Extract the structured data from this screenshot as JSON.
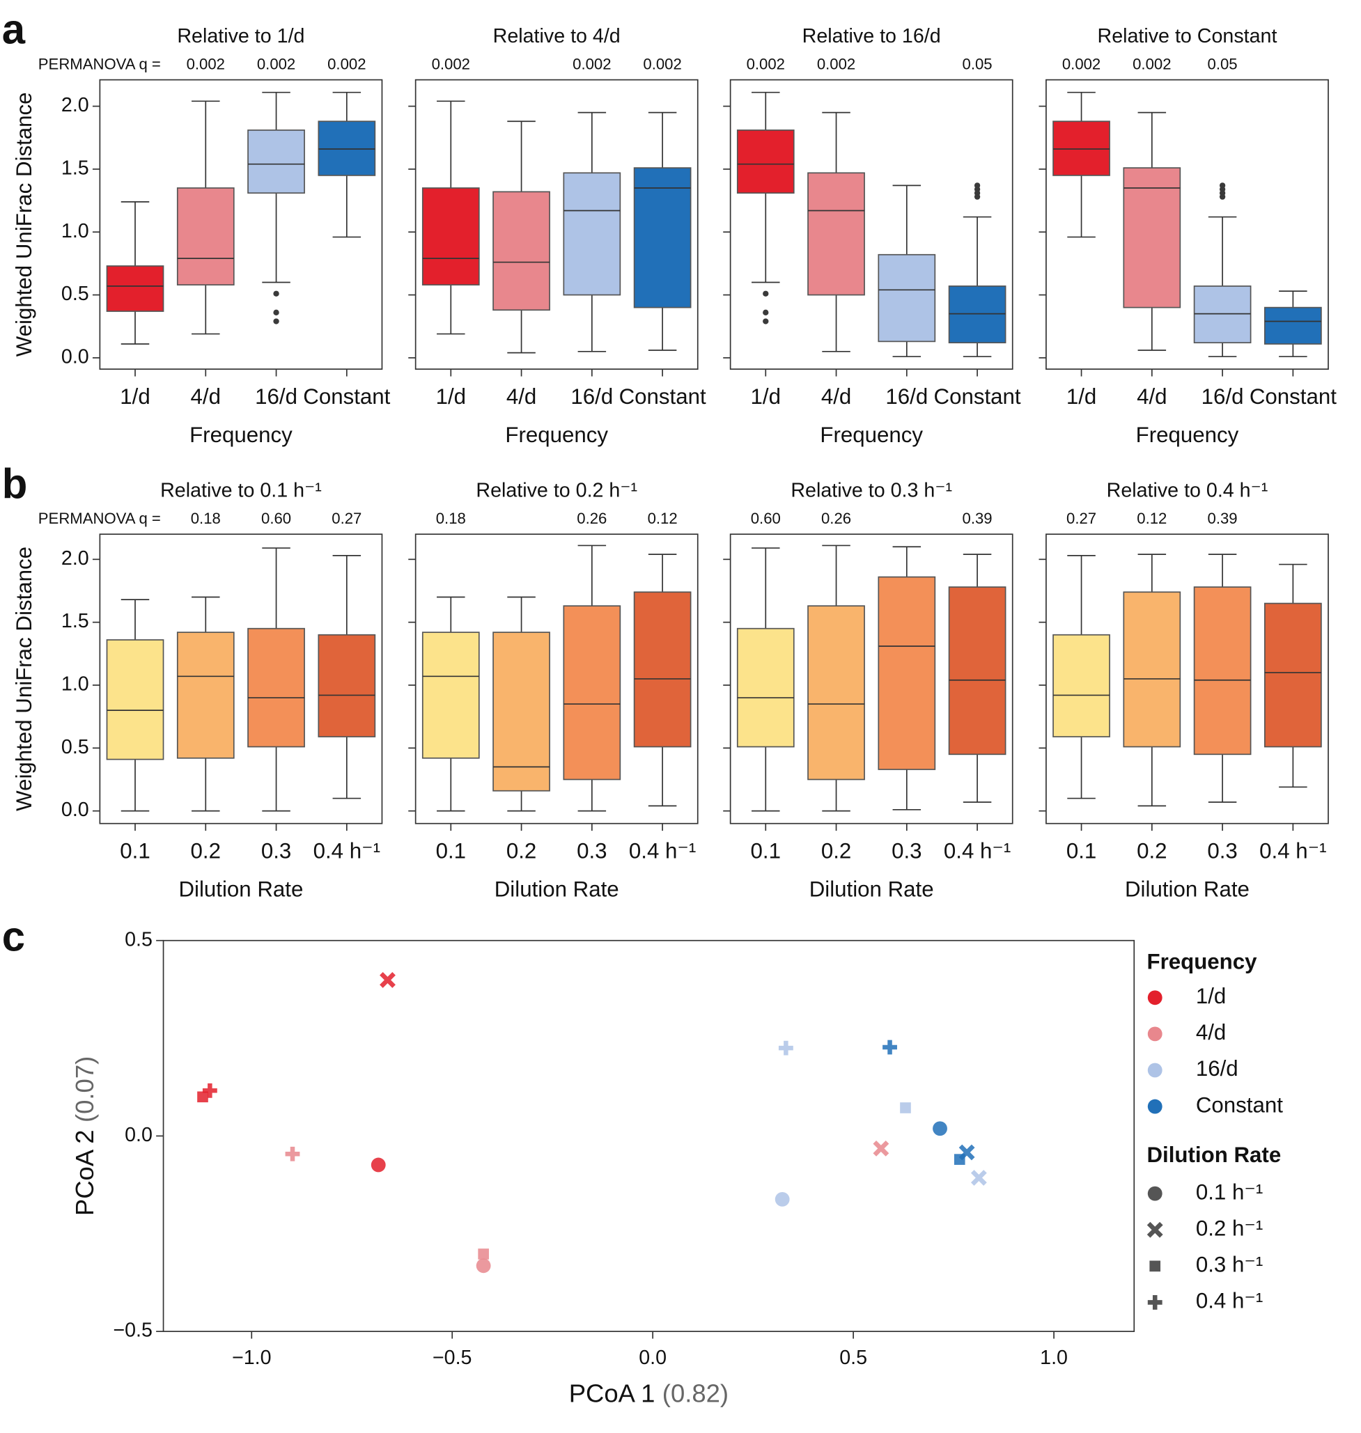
{
  "chart_data": [
    {
      "type": "box",
      "panel_label": "a",
      "title": "Relative to 1/d",
      "q_label": "PERMANOVA q =",
      "q_labels": [
        null,
        "0.002",
        "0.002",
        "0.002"
      ],
      "ylabel": "Weighted UniFrac Distance",
      "xlabel": "Frequency",
      "categories": [
        "1/d",
        "4/d",
        "16/d",
        "Constant"
      ],
      "colors": [
        "#e3202c",
        "#e8878d",
        "#aec3e6",
        "#2170b8"
      ],
      "ylim": [
        -0.09,
        2.21
      ],
      "yticks": [
        {
          "value": 0,
          "label": "0.0"
        },
        0.5,
        {
          "value": 1,
          "label": "1.0"
        },
        1.5,
        {
          "value": 2,
          "label": "2.0"
        }
      ],
      "boxes": [
        {
          "whislo": 0.11,
          "q1": 0.37,
          "med": 0.57,
          "q3": 0.73,
          "whishi": 1.24,
          "fliers": []
        },
        {
          "whislo": 0.19,
          "q1": 0.58,
          "med": 0.79,
          "q3": 1.35,
          "whishi": 2.04,
          "fliers": []
        },
        {
          "whislo": 0.6,
          "q1": 1.31,
          "med": 1.54,
          "q3": 1.81,
          "whishi": 2.11,
          "fliers": [
            0.51,
            0.36,
            0.29
          ]
        },
        {
          "whislo": 0.96,
          "q1": 1.45,
          "med": 1.66,
          "q3": 1.88,
          "whishi": 2.11,
          "fliers": []
        }
      ]
    },
    {
      "type": "box",
      "title": "Relative to 4/d",
      "q_labels": [
        "0.002",
        null,
        "0.002",
        "0.002"
      ],
      "xlabel": "Frequency",
      "categories": [
        "1/d",
        "4/d",
        "16/d",
        "Constant"
      ],
      "colors": [
        "#e3202c",
        "#e8878d",
        "#aec3e6",
        "#2170b8"
      ],
      "ylim": [
        -0.09,
        2.21
      ],
      "boxes": [
        {
          "whislo": 0.19,
          "q1": 0.58,
          "med": 0.79,
          "q3": 1.35,
          "whishi": 2.04,
          "fliers": []
        },
        {
          "whislo": 0.04,
          "q1": 0.38,
          "med": 0.76,
          "q3": 1.32,
          "whishi": 1.88,
          "fliers": []
        },
        {
          "whislo": 0.05,
          "q1": 0.5,
          "med": 1.17,
          "q3": 1.47,
          "whishi": 1.95,
          "fliers": []
        },
        {
          "whislo": 0.06,
          "q1": 0.4,
          "med": 1.35,
          "q3": 1.51,
          "whishi": 1.95,
          "fliers": []
        }
      ]
    },
    {
      "type": "box",
      "title": "Relative to 16/d",
      "q_labels": [
        "0.002",
        "0.002",
        null,
        "0.05"
      ],
      "xlabel": "Frequency",
      "categories": [
        "1/d",
        "4/d",
        "16/d",
        "Constant"
      ],
      "colors": [
        "#e3202c",
        "#e8878d",
        "#aec3e6",
        "#2170b8"
      ],
      "ylim": [
        -0.09,
        2.21
      ],
      "boxes": [
        {
          "whislo": 0.6,
          "q1": 1.31,
          "med": 1.54,
          "q3": 1.81,
          "whishi": 2.11,
          "fliers": [
            0.51,
            0.36,
            0.29
          ]
        },
        {
          "whislo": 0.05,
          "q1": 0.5,
          "med": 1.17,
          "q3": 1.47,
          "whishi": 1.95,
          "fliers": []
        },
        {
          "whislo": 0.01,
          "q1": 0.13,
          "med": 0.54,
          "q3": 0.82,
          "whishi": 1.37,
          "fliers": []
        },
        {
          "whislo": 0.01,
          "q1": 0.12,
          "med": 0.35,
          "q3": 0.57,
          "whishi": 1.12,
          "fliers": [
            1.28,
            1.31,
            1.34,
            1.37
          ]
        }
      ]
    },
    {
      "type": "box",
      "title": "Relative to Constant",
      "q_labels": [
        "0.002",
        "0.002",
        "0.05",
        null
      ],
      "xlabel": "Frequency",
      "categories": [
        "1/d",
        "4/d",
        "16/d",
        "Constant"
      ],
      "colors": [
        "#e3202c",
        "#e8878d",
        "#aec3e6",
        "#2170b8"
      ],
      "ylim": [
        -0.09,
        2.21
      ],
      "boxes": [
        {
          "whislo": 0.96,
          "q1": 1.45,
          "med": 1.66,
          "q3": 1.88,
          "whishi": 2.11,
          "fliers": []
        },
        {
          "whislo": 0.06,
          "q1": 0.4,
          "med": 1.35,
          "q3": 1.51,
          "whishi": 1.95,
          "fliers": []
        },
        {
          "whislo": 0.01,
          "q1": 0.12,
          "med": 0.35,
          "q3": 0.57,
          "whishi": 1.12,
          "fliers": [
            1.28,
            1.31,
            1.34,
            1.37
          ]
        },
        {
          "whislo": 0.01,
          "q1": 0.11,
          "med": 0.29,
          "q3": 0.4,
          "whishi": 0.53,
          "fliers": []
        }
      ]
    },
    {
      "type": "box",
      "panel_label": "b",
      "title": "Relative to 0.1 h⁻¹",
      "q_label": "PERMANOVA q =",
      "q_labels": [
        null,
        "0.18",
        "0.60",
        "0.27"
      ],
      "ylabel": "Weighted UniFrac Distance",
      "xlabel": "Dilution Rate",
      "categories": [
        "0.1",
        "0.2",
        "0.3",
        "0.4 h⁻¹"
      ],
      "colors": [
        "#fce38b",
        "#f9b46c",
        "#f39058",
        "#e0643a"
      ],
      "ylim": [
        -0.1,
        2.2
      ],
      "yticks": [
        {
          "value": 0,
          "label": "0.0"
        },
        0.5,
        {
          "value": 1,
          "label": "1.0"
        },
        1.5,
        {
          "value": 2,
          "label": "2.0"
        }
      ],
      "boxes": [
        {
          "whislo": 0,
          "q1": 0.41,
          "med": 0.8,
          "q3": 1.36,
          "whishi": 1.68,
          "fliers": []
        },
        {
          "whislo": 0,
          "q1": 0.42,
          "med": 1.07,
          "q3": 1.42,
          "whishi": 1.7,
          "fliers": []
        },
        {
          "whislo": 0,
          "q1": 0.51,
          "med": 0.9,
          "q3": 1.45,
          "whishi": 2.09,
          "fliers": []
        },
        {
          "whislo": 0.1,
          "q1": 0.59,
          "med": 0.92,
          "q3": 1.4,
          "whishi": 2.03,
          "fliers": []
        }
      ]
    },
    {
      "type": "box",
      "title": "Relative to 0.2 h⁻¹",
      "q_labels": [
        "0.18",
        null,
        "0.26",
        "0.12"
      ],
      "xlabel": "Dilution Rate",
      "categories": [
        "0.1",
        "0.2",
        "0.3",
        "0.4 h⁻¹"
      ],
      "colors": [
        "#fce38b",
        "#f9b46c",
        "#f39058",
        "#e0643a"
      ],
      "ylim": [
        -0.1,
        2.2
      ],
      "boxes": [
        {
          "whislo": 0,
          "q1": 0.42,
          "med": 1.07,
          "q3": 1.42,
          "whishi": 1.7,
          "fliers": []
        },
        {
          "whislo": 0,
          "q1": 0.16,
          "med": 0.35,
          "q3": 1.42,
          "whishi": 1.7,
          "fliers": []
        },
        {
          "whislo": 0,
          "q1": 0.25,
          "med": 0.85,
          "q3": 1.63,
          "whishi": 2.11,
          "fliers": []
        },
        {
          "whislo": 0.04,
          "q1": 0.51,
          "med": 1.05,
          "q3": 1.74,
          "whishi": 2.04,
          "fliers": []
        }
      ]
    },
    {
      "type": "box",
      "title": "Relative to 0.3 h⁻¹",
      "q_labels": [
        "0.60",
        "0.26",
        null,
        "0.39"
      ],
      "xlabel": "Dilution Rate",
      "categories": [
        "0.1",
        "0.2",
        "0.3",
        "0.4 h⁻¹"
      ],
      "colors": [
        "#fce38b",
        "#f9b46c",
        "#f39058",
        "#e0643a"
      ],
      "ylim": [
        -0.1,
        2.2
      ],
      "boxes": [
        {
          "whislo": 0,
          "q1": 0.51,
          "med": 0.9,
          "q3": 1.45,
          "whishi": 2.09,
          "fliers": []
        },
        {
          "whislo": 0,
          "q1": 0.25,
          "med": 0.85,
          "q3": 1.63,
          "whishi": 2.11,
          "fliers": []
        },
        {
          "whislo": 0.01,
          "q1": 0.33,
          "med": 1.31,
          "q3": 1.86,
          "whishi": 2.1,
          "fliers": []
        },
        {
          "whislo": 0.07,
          "q1": 0.45,
          "med": 1.04,
          "q3": 1.78,
          "whishi": 2.04,
          "fliers": []
        }
      ]
    },
    {
      "type": "box",
      "title": "Relative to 0.4 h⁻¹",
      "q_labels": [
        "0.27",
        "0.12",
        "0.39",
        null
      ],
      "xlabel": "Dilution Rate",
      "categories": [
        "0.1",
        "0.2",
        "0.3",
        "0.4 h⁻¹"
      ],
      "colors": [
        "#fce38b",
        "#f9b46c",
        "#f39058",
        "#e0643a"
      ],
      "ylim": [
        -0.1,
        2.2
      ],
      "boxes": [
        {
          "whislo": 0.1,
          "q1": 0.59,
          "med": 0.92,
          "q3": 1.4,
          "whishi": 2.03,
          "fliers": []
        },
        {
          "whislo": 0.04,
          "q1": 0.51,
          "med": 1.05,
          "q3": 1.74,
          "whishi": 2.04,
          "fliers": []
        },
        {
          "whislo": 0.07,
          "q1": 0.45,
          "med": 1.04,
          "q3": 1.78,
          "whishi": 2.04,
          "fliers": []
        },
        {
          "whislo": 0.19,
          "q1": 0.51,
          "med": 1.1,
          "q3": 1.65,
          "whishi": 1.96,
          "fliers": []
        }
      ]
    },
    {
      "type": "scatter",
      "panel_label": "c",
      "xlabel": "PCoA 1",
      "xlabel_note": "(0.82)",
      "ylabel": "PCoA 2",
      "ylabel_note": "(0.07)",
      "xlim": [
        -1.22,
        1.2
      ],
      "ylim": [
        -0.5,
        0.5
      ],
      "xticks": [
        {
          "value": -1,
          "label": "−1.0"
        },
        {
          "value": -0.5,
          "label": "−0.5"
        },
        {
          "value": 0,
          "label": "0.0"
        },
        0.5,
        {
          "value": 1,
          "label": "1.0"
        }
      ],
      "yticks": [
        {
          "value": -0.5,
          "label": "−0.5"
        },
        {
          "value": 0,
          "label": "0.0"
        },
        0.5
      ],
      "legend_title": "Frequency",
      "marker_title": "Dilution Rate",
      "marker_names": [
        "0.1 h⁻¹",
        "0.2 h⁻¹",
        "0.3 h⁻¹",
        "0.4 h⁻¹"
      ],
      "markers": [
        "circle",
        "x",
        "square",
        "plus"
      ],
      "series": [
        {
          "name": "1/d",
          "color": "#e3202c",
          "x": [
            -0.684,
            -0.661,
            -1.122,
            -1.104
          ],
          "y": [
            -0.074,
            0.399,
            0.1,
            0.116
          ]
        },
        {
          "name": "4/d",
          "color": "#e8878d",
          "x": [
            -0.422,
            0.569,
            -0.422,
            -0.898
          ],
          "y": [
            -0.332,
            -0.032,
            -0.302,
            -0.046
          ]
        },
        {
          "name": "16/d",
          "color": "#aec3e6",
          "x": [
            0.323,
            0.813,
            0.63,
            0.332
          ],
          "y": [
            -0.162,
            -0.107,
            0.072,
            0.225
          ]
        },
        {
          "name": "Constant",
          "color": "#2170b8",
          "x": [
            0.716,
            0.783,
            0.765,
            0.591
          ],
          "y": [
            0.019,
            -0.042,
            -0.06,
            0.227
          ]
        }
      ]
    }
  ]
}
